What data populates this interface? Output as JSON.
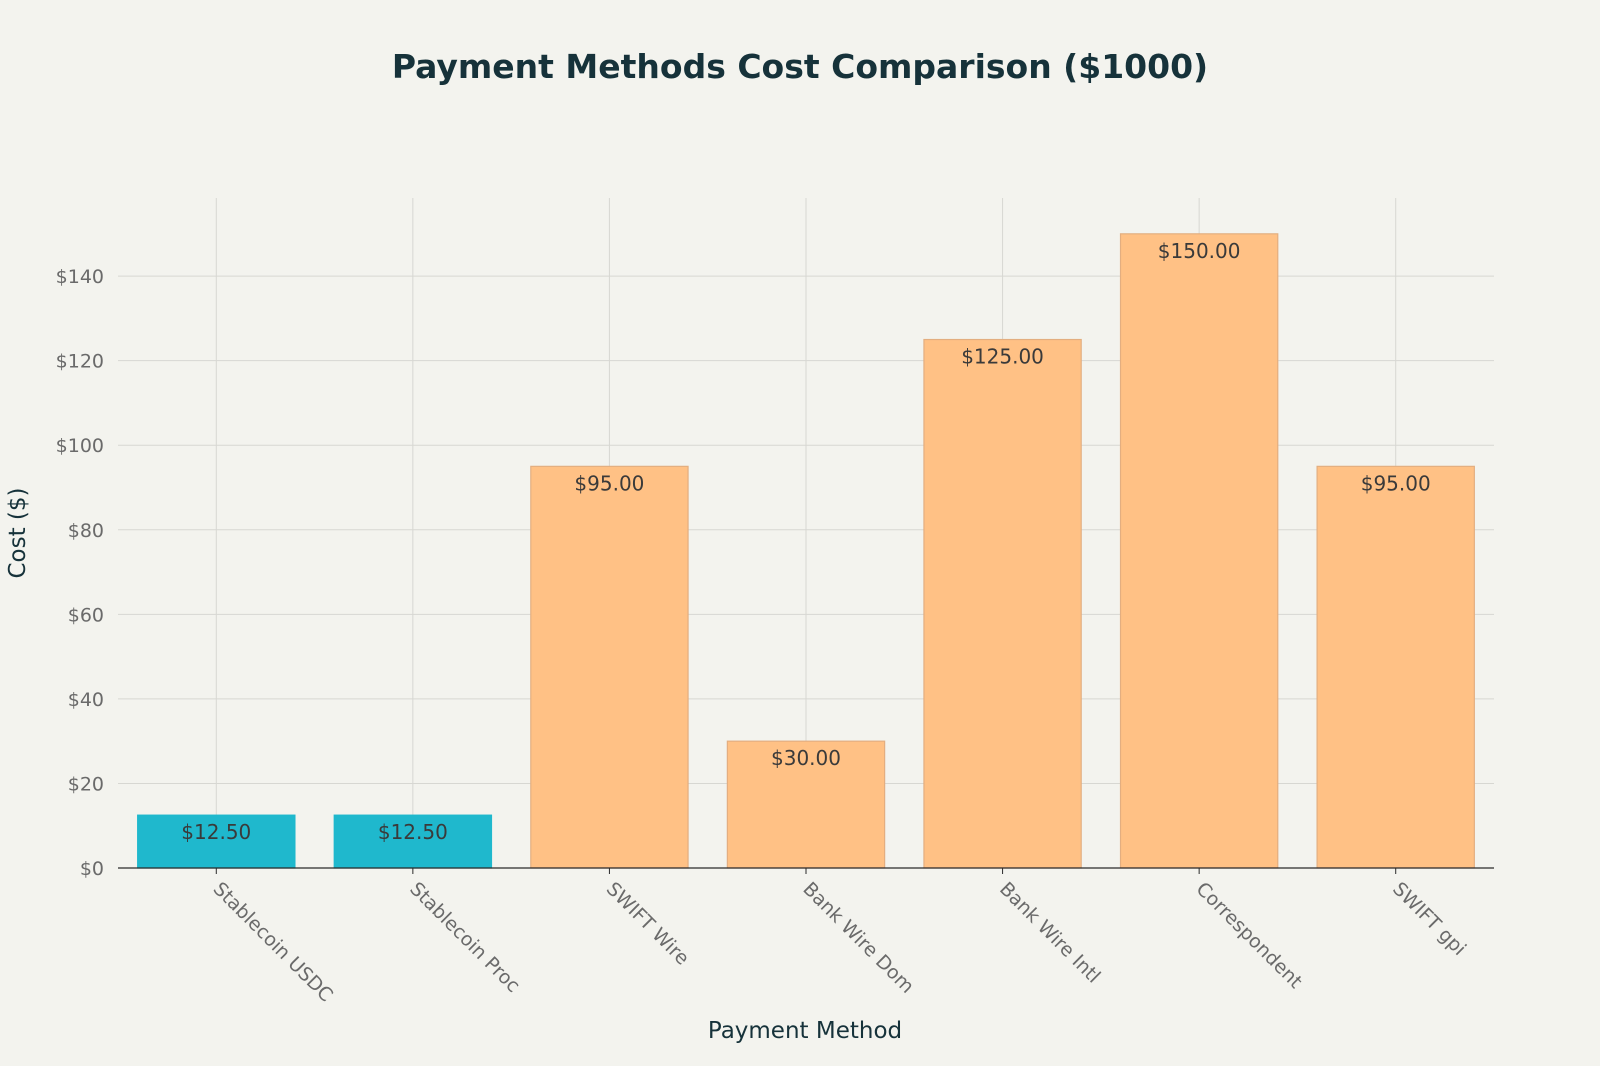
{
  "chart_data": {
    "type": "bar",
    "title": "Payment Methods Cost Comparison ($1000)",
    "xlabel": "Payment Method",
    "ylabel": "Cost ($)",
    "categories": [
      "Stablecoin USDC",
      "Stablecoin Proc",
      "SWIFT Wire",
      "Bank Wire Dom",
      "Bank Wire Intl",
      "Correspondent",
      "SWIFT gpi"
    ],
    "values": [
      12.5,
      12.5,
      95,
      30,
      125,
      150,
      95
    ],
    "data_labels": [
      "$12.50",
      "$12.50",
      "$95.00",
      "$30.00",
      "$125.00",
      "$150.00",
      "$95.00"
    ],
    "bar_colors": [
      "#1fb8cd",
      "#1fb8cd",
      "#ffc185",
      "#ffc185",
      "#ffc185",
      "#ffc185",
      "#ffc185"
    ],
    "bar_border_colors": [
      "#1fb8cd",
      "#1fb8cd",
      "#e3ae80",
      "#e3ae80",
      "#e3ae80",
      "#e3ae80",
      "#e3ae80"
    ],
    "yticks": [
      0,
      20,
      40,
      60,
      80,
      100,
      120,
      140
    ],
    "ytick_labels": [
      "$0",
      "$20",
      "$40",
      "$60",
      "$80",
      "$100",
      "$120",
      "$140"
    ],
    "ylim": [
      0,
      158
    ],
    "grid": true,
    "legend": "none"
  }
}
